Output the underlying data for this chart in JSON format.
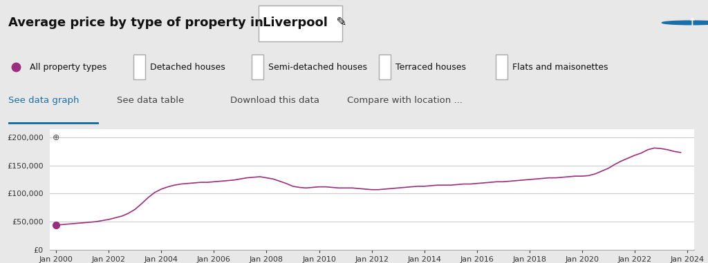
{
  "title_plain": "Average price by type of property in ",
  "title_location": "Liverpool",
  "bg_color": "#e8e8e8",
  "chart_bg": "#ffffff",
  "line_color": "#9b2d7f",
  "dot_color": "#9b2d7f",
  "legend_items": [
    "All property types",
    "Detached houses",
    "Semi-detached houses",
    "Terraced houses",
    "Flats and maisonettes"
  ],
  "nav_items": [
    "See data graph",
    "See data table",
    "Download this data",
    "Compare with location ..."
  ],
  "yticks": [
    0,
    50000,
    100000,
    150000,
    200000
  ],
  "ylim": [
    0,
    215000
  ],
  "xtick_years": [
    2000,
    2002,
    2004,
    2006,
    2008,
    2010,
    2012,
    2014,
    2016,
    2018,
    2020,
    2022,
    2024
  ],
  "data": {
    "years": [
      2000.0,
      2000.25,
      2000.5,
      2000.75,
      2001.0,
      2001.25,
      2001.5,
      2001.75,
      2002.0,
      2002.25,
      2002.5,
      2002.75,
      2003.0,
      2003.25,
      2003.5,
      2003.75,
      2004.0,
      2004.25,
      2004.5,
      2004.75,
      2005.0,
      2005.25,
      2005.5,
      2005.75,
      2006.0,
      2006.25,
      2006.5,
      2006.75,
      2007.0,
      2007.25,
      2007.5,
      2007.75,
      2008.0,
      2008.25,
      2008.5,
      2008.75,
      2009.0,
      2009.25,
      2009.5,
      2009.75,
      2010.0,
      2010.25,
      2010.5,
      2010.75,
      2011.0,
      2011.25,
      2011.5,
      2011.75,
      2012.0,
      2012.25,
      2012.5,
      2012.75,
      2013.0,
      2013.25,
      2013.5,
      2013.75,
      2014.0,
      2014.25,
      2014.5,
      2014.75,
      2015.0,
      2015.25,
      2015.5,
      2015.75,
      2016.0,
      2016.25,
      2016.5,
      2016.75,
      2017.0,
      2017.25,
      2017.5,
      2017.75,
      2018.0,
      2018.25,
      2018.5,
      2018.75,
      2019.0,
      2019.25,
      2019.5,
      2019.75,
      2020.0,
      2020.25,
      2020.5,
      2020.75,
      2021.0,
      2021.25,
      2021.5,
      2021.75,
      2022.0,
      2022.25,
      2022.5,
      2022.75,
      2023.0,
      2023.25,
      2023.5,
      2023.75
    ],
    "values": [
      44000,
      45000,
      46000,
      47000,
      48000,
      49000,
      50000,
      52000,
      54000,
      57000,
      60000,
      65000,
      72000,
      82000,
      93000,
      102000,
      108000,
      112000,
      115000,
      117000,
      118000,
      119000,
      120000,
      120000,
      121000,
      122000,
      123000,
      124000,
      126000,
      128000,
      129000,
      130000,
      128000,
      126000,
      122000,
      118000,
      113000,
      111000,
      110000,
      111000,
      112000,
      112000,
      111000,
      110000,
      110000,
      110000,
      109000,
      108000,
      107000,
      107000,
      108000,
      109000,
      110000,
      111000,
      112000,
      113000,
      113000,
      114000,
      115000,
      115000,
      115000,
      116000,
      117000,
      117000,
      118000,
      119000,
      120000,
      121000,
      121000,
      122000,
      123000,
      124000,
      125000,
      126000,
      127000,
      128000,
      128000,
      129000,
      130000,
      131000,
      131000,
      132000,
      135000,
      140000,
      145000,
      152000,
      158000,
      163000,
      168000,
      172000,
      178000,
      181000,
      180000,
      178000,
      175000,
      173000
    ]
  }
}
